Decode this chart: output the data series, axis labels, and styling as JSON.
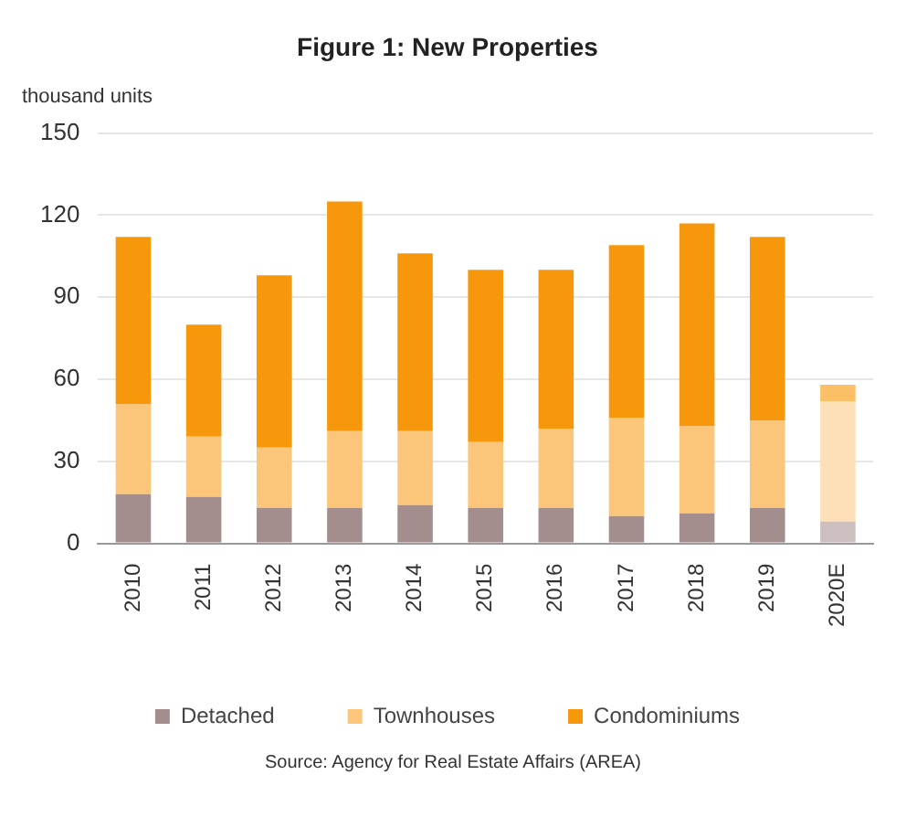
{
  "chart_data": {
    "type": "bar",
    "title": "Figure 1: New Properties",
    "ylabel": "thousand units",
    "categories": [
      "2010",
      "2011",
      "2012",
      "2013",
      "2014",
      "2015",
      "2016",
      "2017",
      "2018",
      "2019",
      "2020E"
    ],
    "stacked": true,
    "series": [
      {
        "name": "Detached",
        "color": "#a38d8d",
        "colors": [
          "#a38d8d",
          "#a38d8d",
          "#a38d8d",
          "#a38d8d",
          "#a38d8d",
          "#a38d8d",
          "#a38d8d",
          "#a38d8d",
          "#a38d8d",
          "#a38d8d",
          "#cdbfbf"
        ],
        "values": [
          18,
          17,
          13,
          13,
          14,
          13,
          13,
          10,
          11,
          13,
          8
        ]
      },
      {
        "name": "Townhouses",
        "color": "#fbc57a",
        "colors": [
          "#fbc57a",
          "#fbc57a",
          "#fbc57a",
          "#fbc57a",
          "#fbc57a",
          "#fbc57a",
          "#fbc57a",
          "#fbc57a",
          "#fbc57a",
          "#fbc57a",
          "#fde0b8"
        ],
        "values": [
          33,
          22,
          22,
          28,
          27,
          24,
          29,
          36,
          32,
          32,
          44
        ]
      },
      {
        "name": "Condominiums",
        "color": "#f7970b",
        "colors": [
          "#f7970b",
          "#f7970b",
          "#f7970b",
          "#f7970b",
          "#f7970b",
          "#f7970b",
          "#f7970b",
          "#f7970b",
          "#f7970b",
          "#f7970b",
          "#fbbf66"
        ],
        "values": [
          61,
          41,
          63,
          84,
          65,
          63,
          58,
          63,
          74,
          67,
          6
        ]
      }
    ],
    "ylim": [
      0,
      150
    ],
    "yticks": [
      0,
      30,
      60,
      90,
      120,
      150
    ],
    "grid": "y",
    "legend": "bottom",
    "annotations": [
      "Source: Agency for Real Estate Affairs (AREA)"
    ]
  }
}
